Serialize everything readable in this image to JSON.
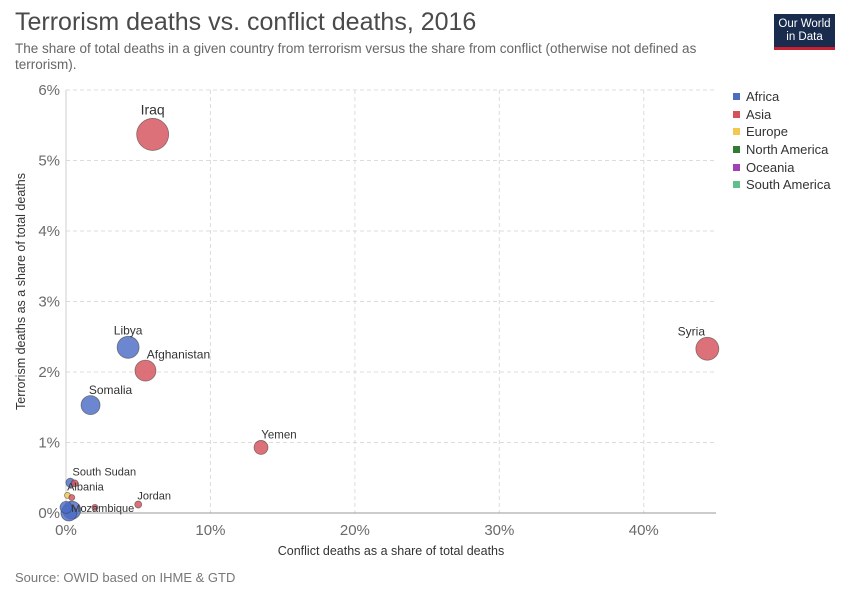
{
  "header": {
    "title": "Terrorism deaths vs. conflict deaths, 2016",
    "subtitle": "The share of total deaths in a given country from terrorism versus the share from conflict (otherwise not defined as terrorism)."
  },
  "logo": {
    "line1": "Our World",
    "line2": "in Data"
  },
  "footer": {
    "source": "Source: OWID based on IHME & GTD"
  },
  "legend": [
    {
      "label": "Africa",
      "color": "#4c6cc4"
    },
    {
      "label": "Asia",
      "color": "#d4525c"
    },
    {
      "label": "Europe",
      "color": "#f2c94c"
    },
    {
      "label": "North America",
      "color": "#2e7d32"
    },
    {
      "label": "Oceania",
      "color": "#a241b5"
    },
    {
      "label": "South America",
      "color": "#5fc08e"
    }
  ],
  "chart_data": {
    "type": "scatter",
    "title": "Terrorism deaths vs. conflict deaths, 2016",
    "xlabel": "Conflict deaths as a share of total deaths",
    "ylabel": "Terrorism deaths as a share of total deaths",
    "xlim": [
      0,
      45
    ],
    "ylim": [
      0,
      6
    ],
    "x_ticks": [
      "0%",
      "10%",
      "20%",
      "30%",
      "40%"
    ],
    "y_ticks": [
      "0%",
      "1%",
      "2%",
      "3%",
      "4%",
      "5%",
      "6%"
    ],
    "grid": true,
    "legend_position": "right",
    "points": [
      {
        "label": "Iraq",
        "region": "Asia",
        "x": 6.0,
        "y": 5.37,
        "r": 16
      },
      {
        "label": "Syria",
        "region": "Asia",
        "x": 44.4,
        "y": 2.33,
        "r": 11.5
      },
      {
        "label": "Libya",
        "region": "Africa",
        "x": 4.3,
        "y": 2.35,
        "r": 11
      },
      {
        "label": "Afghanistan",
        "region": "Asia",
        "x": 5.5,
        "y": 2.02,
        "r": 10.5
      },
      {
        "label": "Somalia",
        "region": "Africa",
        "x": 1.7,
        "y": 1.53,
        "r": 9.5
      },
      {
        "label": "Yemen",
        "region": "Asia",
        "x": 13.5,
        "y": 0.93,
        "r": 7
      },
      {
        "label": "South Sudan",
        "region": "Africa",
        "x": 0.3,
        "y": 0.43,
        "r": 4.5
      },
      {
        "label": "",
        "region": "Asia",
        "x": 0.6,
        "y": 0.42,
        "r": 3.5
      },
      {
        "label": "Albania",
        "region": "Europe",
        "x": 0.1,
        "y": 0.25,
        "r": 3
      },
      {
        "label": "Jordan",
        "region": "Asia",
        "x": 5.0,
        "y": 0.12,
        "r": 3.5
      },
      {
        "label": "Mozambique",
        "region": "Africa",
        "x": 0.4,
        "y": 0.04,
        "r": 9
      },
      {
        "label": "",
        "region": "Africa",
        "x": 0.2,
        "y": 0.0,
        "r": 8
      },
      {
        "label": "",
        "region": "Africa",
        "x": 0.0,
        "y": 0.08,
        "r": 6
      },
      {
        "label": "",
        "region": "Asia",
        "x": 2.0,
        "y": 0.08,
        "r": 3
      },
      {
        "label": "",
        "region": "Asia",
        "x": 0.4,
        "y": 0.22,
        "r": 3
      }
    ]
  }
}
